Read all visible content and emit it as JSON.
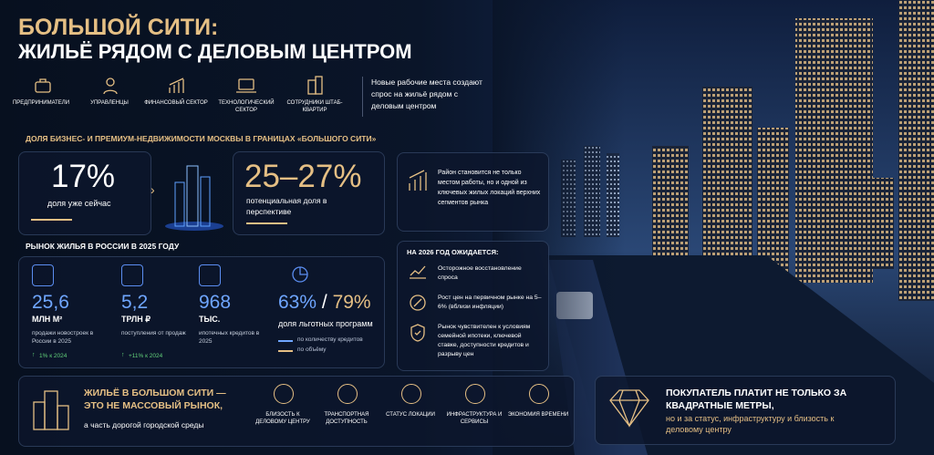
{
  "header": {
    "title_line1": "БОЛЬШОЙ СИТИ:",
    "title_line2": "ЖИЛЬЁ РЯДОМ С ДЕЛОВЫМ ЦЕНТРОМ"
  },
  "audiences": [
    "ПРЕДПРИНИМАТЕЛИ",
    "УПРАВЛЕНЦЫ",
    "ФИНАНСОВЫЙ СЕКТОР",
    "ТЕХНОЛОГИЧЕСКИЙ СЕКТОР",
    "СОТРУДНИКИ ШТАБ-КВАРТИР"
  ],
  "audience_note": "Новые рабочие места создают спрос на жильё рядом с деловым центром",
  "share": {
    "heading": "ДОЛЯ БИЗНЕС- И ПРЕМИУМ-НЕДВИЖИМОСТИ МОСКВЫ В ГРАНИЦАХ «БОЛЬШОГО СИТИ»",
    "current": {
      "value": "17%",
      "label": "доля уже сейчас"
    },
    "potential": {
      "value": "25–27%",
      "label": "потенциальная доля в перспективе"
    },
    "note": "Район становится не только местом работы, но и одной из ключевых жилых локаций верхних сегментов рынка"
  },
  "market": {
    "heading": "РЫНОК ЖИЛЬЯ В РОССИИ В 2025 ГОДУ",
    "stats": [
      {
        "value": "25,6",
        "unit": "МЛН М²",
        "label": "продажи новостроек в России в 2025",
        "change": "1% к 2024"
      },
      {
        "value": "5,2",
        "unit": "ТРЛН ₽",
        "label": "поступления от продаж",
        "change": "+11% к 2024"
      },
      {
        "value": "968",
        "unit": "ТЫС.",
        "label": "ипотечных кредитов в 2025"
      }
    ],
    "preferential": {
      "value_count": "63%",
      "separator": "/",
      "value_volume": "79%",
      "label": "доля льготных программ",
      "legend": [
        "по количеству кредитов",
        "по объёму"
      ]
    }
  },
  "outlook": {
    "heading": "НА 2026 ГОД ОЖИДАЕТСЯ:",
    "items": [
      "Осторожное восстановление спроса",
      "Рост цен на первичном рынке на 5–6% (вблизи инфляции)",
      "Рынок чувствителен к условиям семейной ипотеки, ключевой ставке, доступности кредитов и разрыву цен"
    ]
  },
  "bottom": {
    "headline": "ЖИЛЬЁ В БОЛЬШОМ СИТИ — ЭТО НЕ МАССОВЫЙ РЫНОК,",
    "subline": "а часть дорогой городской среды",
    "features": [
      "БЛИЗОСТЬ К ДЕЛОВОМУ ЦЕНТРУ",
      "ТРАНСПОРТНАЯ ДОСТУПНОСТЬ",
      "СТАТУС ЛОКАЦИИ",
      "ИНФРАСТРУКТУРА И СЕРВИСЫ",
      "ЭКОНОМИЯ ВРЕМЕНИ"
    ]
  },
  "buyer": {
    "headline": "ПОКУПАТЕЛЬ ПЛАТИТ НЕ ТОЛЬКО ЗА КВАДРАТНЫЕ МЕТРЫ,",
    "subline": "но и за статус, инфраструктуру и близость к деловому центру"
  }
}
